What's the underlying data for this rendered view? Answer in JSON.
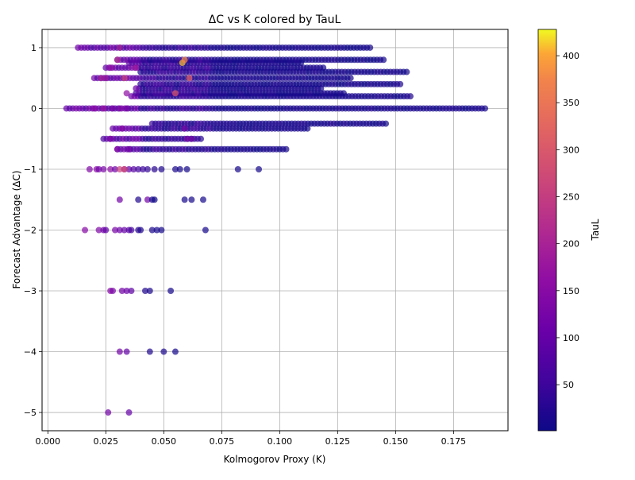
{
  "chart_data": {
    "type": "scatter",
    "title": "ΔC vs K colored by TauL",
    "xlabel": "Kolmogorov Proxy (K)",
    "ylabel": "Forecast Advantage (ΔC)",
    "xlim": [
      -0.0025,
      0.1985
    ],
    "ylim": [
      -5.3,
      1.3
    ],
    "xticks": [
      0.0,
      0.025,
      0.05,
      0.075,
      0.1,
      0.125,
      0.15,
      0.175
    ],
    "xtick_labels": [
      "0.000",
      "0.025",
      "0.050",
      "0.075",
      "0.100",
      "0.125",
      "0.150",
      "0.175"
    ],
    "yticks": [
      1,
      0,
      -1,
      -2,
      -3,
      -4,
      -5
    ],
    "ytick_labels": [
      "1",
      "0",
      "−1",
      "−2",
      "−3",
      "−4",
      "−5"
    ],
    "grid": true,
    "colorbar": {
      "label": "TauL",
      "colormap": "plasma",
      "range": [
        1,
        428
      ],
      "ticks": [
        50,
        100,
        150,
        200,
        250,
        300,
        350,
        400
      ],
      "tick_labels": [
        "50",
        "100",
        "150",
        "200",
        "250",
        "300",
        "350",
        "400"
      ]
    },
    "bands": [
      {
        "y": 0.0,
        "x_min": 0.008,
        "x_max": 0.189
      },
      {
        "y": 0.2,
        "x_min": 0.036,
        "x_max": 0.157
      },
      {
        "y": 0.25,
        "x_min": 0.038,
        "x_max": 0.128
      },
      {
        "y": 0.33,
        "x_min": 0.038,
        "x_max": 0.118
      },
      {
        "y": 0.4,
        "x_min": 0.04,
        "x_max": 0.153
      },
      {
        "y": 0.5,
        "x_min": 0.02,
        "x_max": 0.131
      },
      {
        "y": 0.6,
        "x_min": 0.04,
        "x_max": 0.155
      },
      {
        "y": 0.67,
        "x_min": 0.025,
        "x_max": 0.12
      },
      {
        "y": 0.75,
        "x_min": 0.035,
        "x_max": 0.11
      },
      {
        "y": 0.8,
        "x_min": 0.03,
        "x_max": 0.146
      },
      {
        "y": 1.0,
        "x_min": 0.013,
        "x_max": 0.139
      },
      {
        "y": -0.25,
        "x_min": 0.045,
        "x_max": 0.146
      },
      {
        "y": -0.33,
        "x_min": 0.028,
        "x_max": 0.112
      },
      {
        "y": -0.5,
        "x_min": 0.024,
        "x_max": 0.066
      },
      {
        "y": -0.67,
        "x_min": 0.03,
        "x_max": 0.103
      }
    ],
    "points": [
      {
        "x": 0.018,
        "y": -1.0,
        "tau": 140
      },
      {
        "x": 0.021,
        "y": -1.0,
        "tau": 150
      },
      {
        "x": 0.022,
        "y": -1.0,
        "tau": 120
      },
      {
        "x": 0.024,
        "y": -1.0,
        "tau": 130
      },
      {
        "x": 0.027,
        "y": -1.0,
        "tau": 160
      },
      {
        "x": 0.029,
        "y": -1.0,
        "tau": 110
      },
      {
        "x": 0.031,
        "y": -1.0,
        "tau": 260
      },
      {
        "x": 0.033,
        "y": -1.0,
        "tau": 150
      },
      {
        "x": 0.035,
        "y": -1.0,
        "tau": 100
      },
      {
        "x": 0.037,
        "y": -1.0,
        "tau": 80
      },
      {
        "x": 0.039,
        "y": -1.0,
        "tau": 60
      },
      {
        "x": 0.041,
        "y": -1.0,
        "tau": 50
      },
      {
        "x": 0.043,
        "y": -1.0,
        "tau": 40
      },
      {
        "x": 0.046,
        "y": -1.0,
        "tau": 30
      },
      {
        "x": 0.049,
        "y": -1.0,
        "tau": 20
      },
      {
        "x": 0.055,
        "y": -1.0,
        "tau": 15
      },
      {
        "x": 0.057,
        "y": -1.0,
        "tau": 10
      },
      {
        "x": 0.06,
        "y": -1.0,
        "tau": 8
      },
      {
        "x": 0.082,
        "y": -1.0,
        "tau": 10
      },
      {
        "x": 0.091,
        "y": -1.0,
        "tau": 10
      },
      {
        "x": 0.031,
        "y": -1.5,
        "tau": 120
      },
      {
        "x": 0.039,
        "y": -1.5,
        "tau": 20
      },
      {
        "x": 0.043,
        "y": -1.5,
        "tau": 120
      },
      {
        "x": 0.045,
        "y": -1.5,
        "tau": 10
      },
      {
        "x": 0.046,
        "y": -1.5,
        "tau": 5
      },
      {
        "x": 0.059,
        "y": -1.5,
        "tau": 10
      },
      {
        "x": 0.062,
        "y": -1.5,
        "tau": 8
      },
      {
        "x": 0.067,
        "y": -1.5,
        "tau": 10
      },
      {
        "x": 0.016,
        "y": -2.0,
        "tau": 150
      },
      {
        "x": 0.022,
        "y": -2.0,
        "tau": 140
      },
      {
        "x": 0.024,
        "y": -2.0,
        "tau": 120
      },
      {
        "x": 0.025,
        "y": -2.0,
        "tau": 100
      },
      {
        "x": 0.029,
        "y": -2.0,
        "tau": 130
      },
      {
        "x": 0.031,
        "y": -2.0,
        "tau": 110
      },
      {
        "x": 0.033,
        "y": -2.0,
        "tau": 100
      },
      {
        "x": 0.035,
        "y": -2.0,
        "tau": 90
      },
      {
        "x": 0.036,
        "y": -2.0,
        "tau": 60
      },
      {
        "x": 0.039,
        "y": -2.0,
        "tau": 30
      },
      {
        "x": 0.04,
        "y": -2.0,
        "tau": 20
      },
      {
        "x": 0.045,
        "y": -2.0,
        "tau": 15
      },
      {
        "x": 0.047,
        "y": -2.0,
        "tau": 10
      },
      {
        "x": 0.049,
        "y": -2.0,
        "tau": 8
      },
      {
        "x": 0.068,
        "y": -2.0,
        "tau": 10
      },
      {
        "x": 0.027,
        "y": -3.0,
        "tau": 150
      },
      {
        "x": 0.028,
        "y": -3.0,
        "tau": 130
      },
      {
        "x": 0.032,
        "y": -3.0,
        "tau": 120
      },
      {
        "x": 0.034,
        "y": -3.0,
        "tau": 110
      },
      {
        "x": 0.036,
        "y": -3.0,
        "tau": 90
      },
      {
        "x": 0.042,
        "y": -3.0,
        "tau": 20
      },
      {
        "x": 0.044,
        "y": -3.0,
        "tau": 15
      },
      {
        "x": 0.053,
        "y": -3.0,
        "tau": 10
      },
      {
        "x": 0.031,
        "y": -4.0,
        "tau": 120
      },
      {
        "x": 0.034,
        "y": -4.0,
        "tau": 100
      },
      {
        "x": 0.044,
        "y": -4.0,
        "tau": 20
      },
      {
        "x": 0.05,
        "y": -4.0,
        "tau": 15
      },
      {
        "x": 0.055,
        "y": -4.0,
        "tau": 10
      },
      {
        "x": 0.026,
        "y": -5.0,
        "tau": 120
      },
      {
        "x": 0.035,
        "y": -5.0,
        "tau": 100
      },
      {
        "x": 0.023,
        "y": 0.5,
        "tau": 200
      },
      {
        "x": 0.025,
        "y": 0.5,
        "tau": 180
      },
      {
        "x": 0.027,
        "y": 0.67,
        "tau": 160
      },
      {
        "x": 0.03,
        "y": 0.8,
        "tau": 220
      },
      {
        "x": 0.033,
        "y": 0.5,
        "tau": 260
      },
      {
        "x": 0.031,
        "y": 1.0,
        "tau": 200
      },
      {
        "x": 0.058,
        "y": 0.75,
        "tau": 410
      },
      {
        "x": 0.059,
        "y": 0.8,
        "tau": 380
      },
      {
        "x": 0.055,
        "y": 0.25,
        "tau": 300
      },
      {
        "x": 0.061,
        "y": 0.5,
        "tau": 320
      },
      {
        "x": 0.034,
        "y": 0.25,
        "tau": 160
      },
      {
        "x": 0.038,
        "y": 0.67,
        "tau": 180
      },
      {
        "x": 0.027,
        "y": -0.5,
        "tau": 130
      },
      {
        "x": 0.03,
        "y": -0.67,
        "tau": 140
      },
      {
        "x": 0.032,
        "y": -0.33,
        "tau": 150
      },
      {
        "x": 0.035,
        "y": -0.67,
        "tau": 120
      },
      {
        "x": 0.059,
        "y": -0.33,
        "tau": 130
      },
      {
        "x": 0.06,
        "y": -0.5,
        "tau": 140
      },
      {
        "x": 0.062,
        "y": -0.5,
        "tau": 130
      },
      {
        "x": 0.033,
        "y": -1.0,
        "tau": 280
      },
      {
        "x": 0.02,
        "y": 0.0,
        "tau": 150
      },
      {
        "x": 0.024,
        "y": 0.0,
        "tau": 170
      },
      {
        "x": 0.028,
        "y": 0.0,
        "tau": 130
      },
      {
        "x": 0.031,
        "y": 0.0,
        "tau": 140
      },
      {
        "x": 0.034,
        "y": 0.0,
        "tau": 120
      }
    ]
  }
}
